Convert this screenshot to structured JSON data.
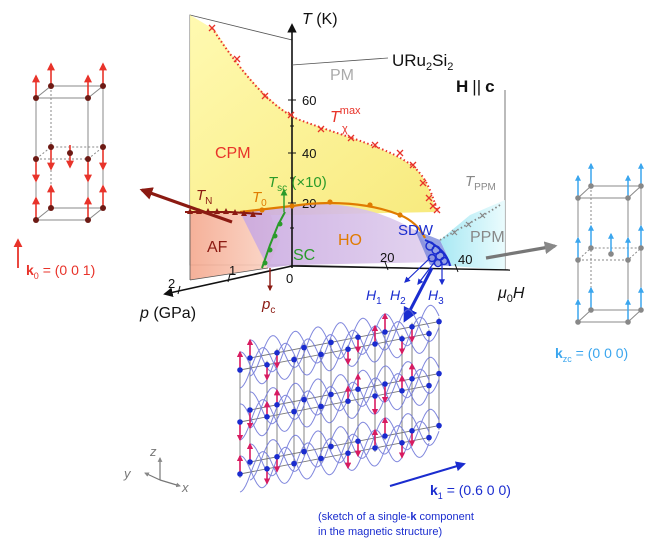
{
  "compound": {
    "base": "URu",
    "sub1": "2",
    "mid": "Si",
    "sub2": "2"
  },
  "field_dir": {
    "H": "H",
    "par": "||",
    "c": "c"
  },
  "axes": {
    "temperature": {
      "label": "T",
      "unit": " (K)",
      "ticks": [
        "20",
        "40",
        "60"
      ]
    },
    "pressure": {
      "label": "p",
      "unit": " (GPa)",
      "ticks": [
        "1",
        "2"
      ]
    },
    "field": {
      "mu": "μ",
      "sub0": "0",
      "H": "H",
      "ticks": [
        "0",
        "20",
        "40"
      ]
    }
  },
  "phases": {
    "pm": "PM",
    "cpm": "CPM",
    "af": "AF",
    "ho": "HO",
    "sc": "SC",
    "sdw": "SDW",
    "ppm": "PPM"
  },
  "lines": {
    "tchi": {
      "T": "T",
      "sup": "max",
      "sub": "χ"
    },
    "tn": {
      "T": "T",
      "sub": "N"
    },
    "t0": {
      "T": "T",
      "sub": "0"
    },
    "tsc": {
      "T": "T",
      "sub": "sc",
      "suffix": " (×10)"
    },
    "tppm": {
      "T": "T",
      "sub": "PPM"
    },
    "pc": {
      "p": "p",
      "sub": "c"
    },
    "h1": {
      "H": "H",
      "sub": "1"
    },
    "h2": {
      "H": "H",
      "sub": "2"
    },
    "h3": {
      "H": "H",
      "sub": "3"
    }
  },
  "wavevectors": {
    "k0": {
      "k": "k",
      "sub": "0",
      "value": " = (0 0 1)"
    },
    "kzc": {
      "k": "k",
      "sub": "zc",
      "value": " = (0 0 0)"
    },
    "k1": {
      "k": "k",
      "sub": "1",
      "value": " = (0.6 0 0)"
    }
  },
  "coord_axes": {
    "x": "x",
    "y": "y",
    "z": "z"
  },
  "caption": {
    "line1a": "(sketch of a single-",
    "line1b": "k",
    "line1c": " component",
    "line2": "in the magnetic structure)"
  },
  "colors": {
    "red": "#e8332a",
    "darkred": "#8b1a12",
    "orange": "#e07b00",
    "green": "#2a9b2a",
    "blue": "#1a2ccf",
    "cyan": "#3ba6ee",
    "gray": "#888888",
    "magenta": "#d81b60"
  }
}
